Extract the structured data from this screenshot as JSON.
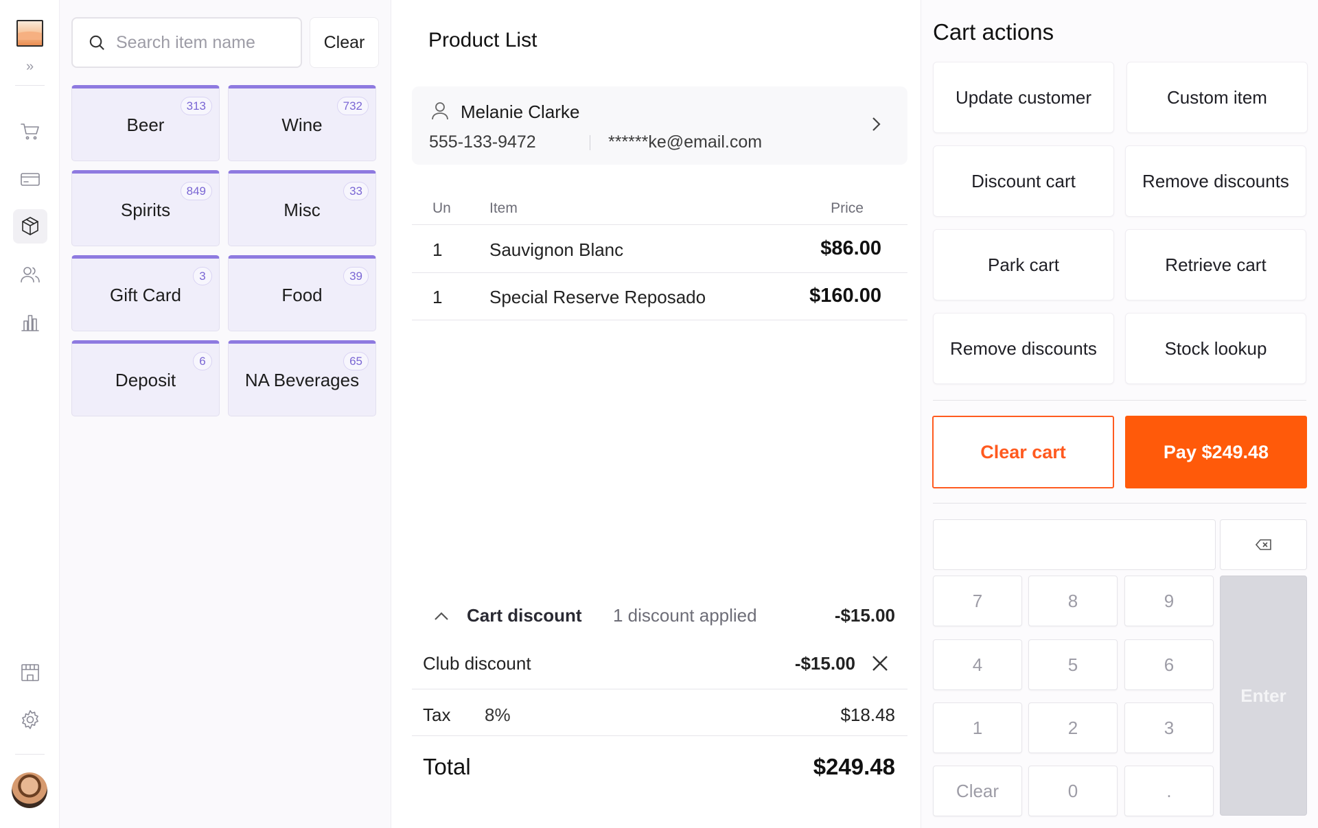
{
  "sidebar": {
    "expand_glyph": "»",
    "nav": [
      {
        "icon": "cart-icon"
      },
      {
        "icon": "card-icon"
      },
      {
        "icon": "package-icon",
        "active": true
      },
      {
        "icon": "users-icon"
      },
      {
        "icon": "reports-icon"
      },
      {
        "icon": "store-icon"
      },
      {
        "icon": "gear-icon"
      }
    ]
  },
  "search": {
    "placeholder": "Search item name",
    "value": "",
    "clear_label": "Clear"
  },
  "categories": [
    {
      "name": "Beer",
      "count": "313"
    },
    {
      "name": "Wine",
      "count": "732"
    },
    {
      "name": "Spirits",
      "count": "849"
    },
    {
      "name": "Misc",
      "count": "33"
    },
    {
      "name": "Gift Card",
      "count": "3"
    },
    {
      "name": "Food",
      "count": "39"
    },
    {
      "name": "Deposit",
      "count": "6"
    },
    {
      "name": "NA Beverages",
      "count": "65"
    }
  ],
  "product_list": {
    "title": "Product List",
    "customer": {
      "name": "Melanie Clarke",
      "phone": "555-133-9472",
      "email": "******ke@email.com"
    },
    "columns": {
      "units": "Un",
      "item": "Item",
      "price": "Price"
    },
    "items": [
      {
        "units": "1",
        "name": "Sauvignon Blanc",
        "price": "$86.00"
      },
      {
        "units": "1",
        "name": "Special Reserve Reposado",
        "price": "$160.00"
      }
    ],
    "cart_discount": {
      "label": "Cart discount",
      "count_text": "1 discount applied",
      "amount": "-$15.00",
      "lines": [
        {
          "name": "Club discount",
          "amount": "-$15.00"
        }
      ]
    },
    "tax": {
      "label": "Tax",
      "rate": "8%",
      "amount": "$18.48"
    },
    "total": {
      "label": "Total",
      "amount": "$249.48"
    }
  },
  "cart_actions": {
    "title": "Cart actions",
    "buttons": [
      "Update customer",
      "Custom item",
      "Discount cart",
      "Remove discounts",
      "Park cart",
      "Retrieve cart",
      "Remove discounts",
      "Stock lookup"
    ],
    "clear_cart": "Clear cart",
    "pay": "Pay $249.48",
    "keypad": {
      "keys": [
        "7",
        "8",
        "9",
        "4",
        "5",
        "6",
        "1",
        "2",
        "3",
        "Clear",
        "0",
        "."
      ],
      "enter": "Enter",
      "value": ""
    }
  },
  "colors": {
    "accent": "#ff5a0a",
    "category_accent": "#8e7ae0",
    "category_bg": "#f0eefa"
  }
}
